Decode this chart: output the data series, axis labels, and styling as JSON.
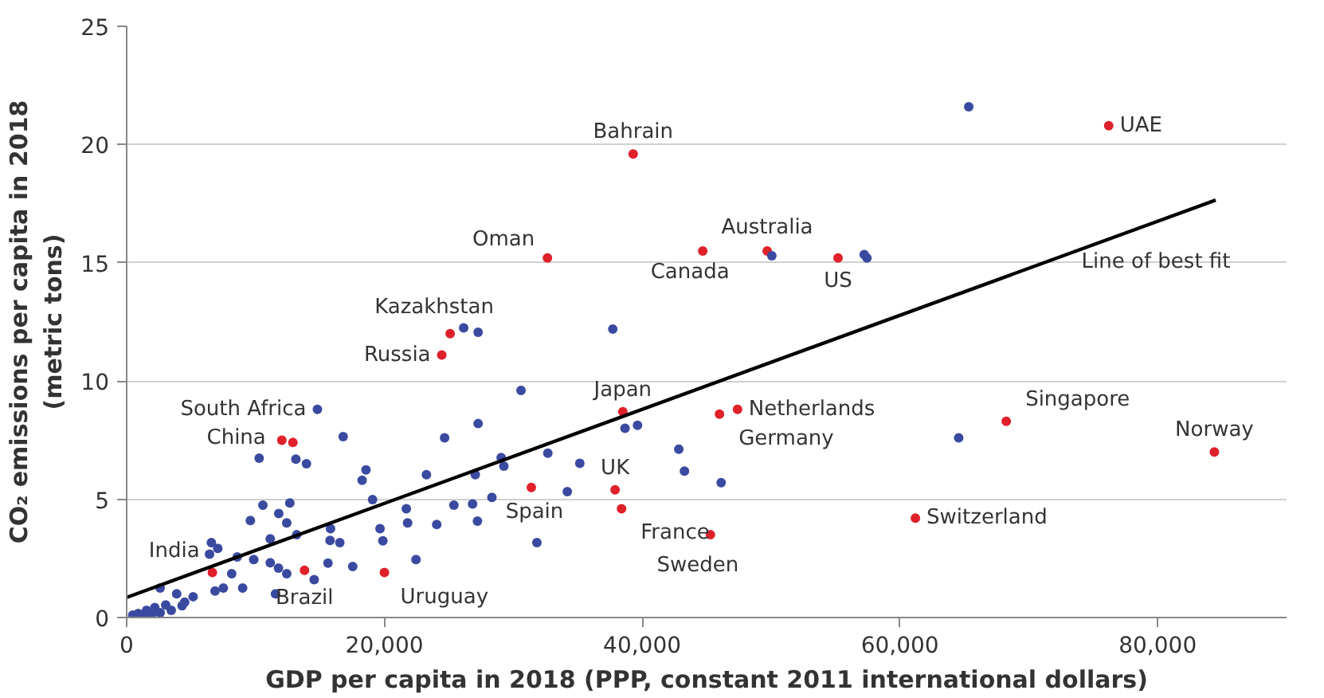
{
  "chart_data": {
    "type": "scatter",
    "xlabel": "GDP per capita in 2018 (PPP, constant 2011 international dollars)",
    "ylabel": "CO₂ emissions per capita in 2018\n(metric tons)",
    "xlim": [
      0,
      90000
    ],
    "ylim": [
      0,
      25
    ],
    "xticks": [
      0,
      {
        "value": 20000,
        "label": "20,000"
      },
      {
        "value": 40000,
        "label": "40,000"
      },
      {
        "value": 60000,
        "label": "60,000"
      },
      {
        "value": 80000,
        "label": "80,000"
      }
    ],
    "yticks": [
      0,
      5,
      10,
      15,
      20,
      25
    ],
    "grid": "y",
    "marker": "circle",
    "series": [
      {
        "color": "#e0202a",
        "x": [
          76200,
          39300,
          32650,
          44700,
          49700,
          55200,
          25100,
          24450,
          38500,
          47400,
          46000,
          68250,
          84400,
          61200,
          45300,
          38400,
          37900,
          31400,
          20000,
          13800,
          6650,
          12040,
          12900
        ],
        "values": [
          20.8,
          19.6,
          15.2,
          15.5,
          15.5,
          15.2,
          12.0,
          11.1,
          8.7,
          8.8,
          8.6,
          8.3,
          7.0,
          4.2,
          3.5,
          4.6,
          5.4,
          5.5,
          1.9,
          2.0,
          1.9,
          7.5,
          7.4
        ]
      },
      {
        "color": "#3a4aa0",
        "x": [
          14800,
          16800,
          27270,
          24670,
          10280,
          13130,
          13950,
          18570,
          18270,
          23260,
          27050,
          29060,
          19080,
          21700,
          25390,
          26840,
          28340,
          21800,
          24060,
          27220,
          10570,
          9600,
          11800,
          12420,
          12660,
          11140,
          13190,
          15820,
          15780,
          16540,
          19660,
          19880,
          6570,
          6430,
          7070,
          8580,
          9860,
          11140,
          11780,
          12420,
          14550,
          15620,
          17540,
          22450,
          11550,
          8150,
          7500,
          9000,
          6860,
          2600,
          3880,
          5160,
          4500,
          900,
          1540,
          2180,
          3030,
          1320,
          1960,
          2600,
          3460,
          470,
          4300,
          26150,
          27270,
          30600,
          37720,
          50060,
          57230,
          38670,
          39640,
          42840,
          43280,
          46130,
          35160,
          32680,
          29270,
          34190,
          31830,
          65340,
          64560,
          57440
        ],
        "values": [
          8.8,
          7.65,
          8.2,
          7.6,
          6.74,
          6.7,
          6.5,
          6.24,
          5.8,
          6.04,
          6.04,
          6.76,
          4.99,
          4.6,
          4.75,
          4.8,
          5.08,
          4.0,
          3.93,
          4.08,
          4.75,
          4.1,
          4.4,
          4.0,
          4.84,
          3.33,
          3.5,
          3.76,
          3.26,
          3.17,
          3.76,
          3.24,
          3.17,
          2.68,
          2.92,
          2.56,
          2.45,
          2.32,
          2.09,
          1.85,
          1.6,
          2.3,
          2.16,
          2.45,
          1.0,
          1.85,
          1.25,
          1.25,
          1.12,
          1.25,
          1.0,
          0.88,
          0.65,
          0.17,
          0.3,
          0.42,
          0.53,
          0.1,
          0.14,
          0.2,
          0.3,
          0.1,
          0.5,
          12.25,
          12.06,
          9.6,
          12.2,
          15.3,
          15.35,
          8.0,
          8.13,
          7.12,
          6.19,
          5.7,
          6.52,
          6.95,
          6.4,
          5.32,
          3.17,
          21.6,
          7.6,
          15.2
        ]
      },
      {
        "type": "line",
        "marker": "none",
        "color": "#000000",
        "x": [
          0,
          84500
        ],
        "values": [
          0.85,
          17.65
        ]
      }
    ],
    "annotations": [
      {
        "text": "UAE",
        "x": 76200,
        "y": 20.8
      },
      {
        "text": "Bahrain",
        "x": 39300,
        "y": 19.6
      },
      {
        "text": "Oman",
        "x": 32650,
        "y": 15.2
      },
      {
        "text": "Canada",
        "x": 44700,
        "y": 15.5
      },
      {
        "text": "Australia",
        "x": 49700,
        "y": 15.5
      },
      {
        "text": "US",
        "x": 55200,
        "y": 15.2
      },
      {
        "text": "Kazakhstan",
        "x": 25100,
        "y": 12.0
      },
      {
        "text": "Russia",
        "x": 24450,
        "y": 11.1
      },
      {
        "text": "Japan",
        "x": 38500,
        "y": 8.7
      },
      {
        "text": "Netherlands",
        "x": 47400,
        "y": 8.8
      },
      {
        "text": "Germany",
        "x": 46000,
        "y": 8.6
      },
      {
        "text": "Singapore",
        "x": 68250,
        "y": 8.3
      },
      {
        "text": "Norway",
        "x": 84400,
        "y": 7.0
      },
      {
        "text": "Switzerland",
        "x": 61200,
        "y": 4.2
      },
      {
        "text": "Sweden",
        "x": 45300,
        "y": 3.5
      },
      {
        "text": "France",
        "x": 38400,
        "y": 4.6
      },
      {
        "text": "UK",
        "x": 37900,
        "y": 5.4
      },
      {
        "text": "Spain",
        "x": 31400,
        "y": 5.5
      },
      {
        "text": "Uruguay",
        "x": 20000,
        "y": 1.9
      },
      {
        "text": "Brazil",
        "x": 13800,
        "y": 2.0
      },
      {
        "text": "India",
        "x": 6650,
        "y": 1.9
      },
      {
        "text": "China",
        "x": 12040,
        "y": 7.5
      },
      {
        "text": "South Africa",
        "x": 14800,
        "y": 8.8
      },
      "Line of best fit"
    ]
  }
}
